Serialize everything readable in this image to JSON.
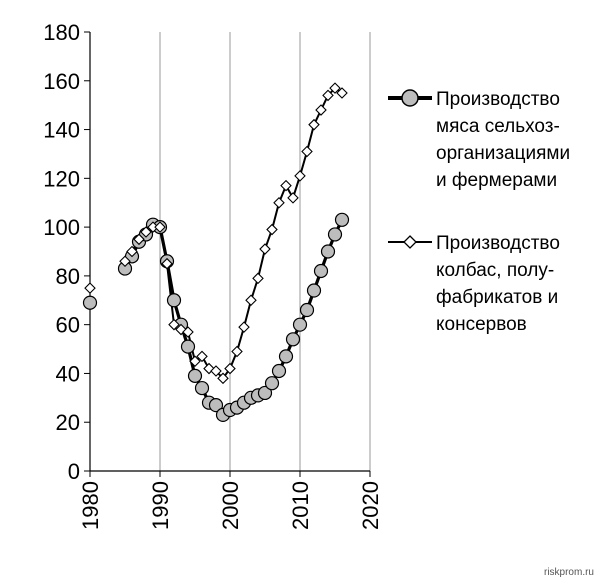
{
  "chart_data": {
    "type": "line",
    "xlim": [
      1980,
      2020
    ],
    "ylim": [
      0,
      180
    ],
    "x_ticks": [
      "1980",
      "1990",
      "2000",
      "2010",
      "2020"
    ],
    "y_ticks": [
      "0",
      "20",
      "40",
      "60",
      "80",
      "100",
      "120",
      "140",
      "160",
      "180"
    ],
    "grid": "vertical",
    "legend_position": "right",
    "series": [
      {
        "name": "Производство мяса сельхоз-организациями и фермерами",
        "legend_lines": [
          "Производство",
          "мяса сельхоз-",
          "организациями",
          "и фермерами"
        ],
        "marker": "circle",
        "marker_fill": "#bdbdbd",
        "line_width": "thick",
        "isolated": [
          {
            "x": 1980,
            "y": 69
          }
        ],
        "points": [
          {
            "x": 1985,
            "y": 83
          },
          {
            "x": 1986,
            "y": 88
          },
          {
            "x": 1987,
            "y": 94
          },
          {
            "x": 1988,
            "y": 97
          },
          {
            "x": 1989,
            "y": 101
          },
          {
            "x": 1990,
            "y": 100
          },
          {
            "x": 1991,
            "y": 86
          },
          {
            "x": 1992,
            "y": 70
          },
          {
            "x": 1993,
            "y": 60
          },
          {
            "x": 1994,
            "y": 51
          },
          {
            "x": 1995,
            "y": 39
          },
          {
            "x": 1996,
            "y": 34
          },
          {
            "x": 1997,
            "y": 28
          },
          {
            "x": 1998,
            "y": 27
          },
          {
            "x": 1999,
            "y": 23
          },
          {
            "x": 2000,
            "y": 25
          },
          {
            "x": 2001,
            "y": 26
          },
          {
            "x": 2002,
            "y": 28
          },
          {
            "x": 2003,
            "y": 30
          },
          {
            "x": 2004,
            "y": 31
          },
          {
            "x": 2005,
            "y": 32
          },
          {
            "x": 2006,
            "y": 36
          },
          {
            "x": 2007,
            "y": 41
          },
          {
            "x": 2008,
            "y": 47
          },
          {
            "x": 2009,
            "y": 54
          },
          {
            "x": 2010,
            "y": 60
          },
          {
            "x": 2011,
            "y": 66
          },
          {
            "x": 2012,
            "y": 74
          },
          {
            "x": 2013,
            "y": 82
          },
          {
            "x": 2014,
            "y": 90
          },
          {
            "x": 2015,
            "y": 97
          },
          {
            "x": 2016,
            "y": 103
          }
        ]
      },
      {
        "name": "Производство колбас, полуфабрикатов и консервов",
        "legend_lines": [
          "Производство",
          "колбас, полу-",
          "фабрикатов и",
          "консервов"
        ],
        "marker": "diamond",
        "marker_fill": "#ffffff",
        "line_width": "medium",
        "isolated": [
          {
            "x": 1980,
            "y": 75
          }
        ],
        "points": [
          {
            "x": 1985,
            "y": 86
          },
          {
            "x": 1986,
            "y": 90
          },
          {
            "x": 1987,
            "y": 95
          },
          {
            "x": 1988,
            "y": 98
          },
          {
            "x": 1989,
            "y": 100
          },
          {
            "x": 1990,
            "y": 100
          },
          {
            "x": 1991,
            "y": 85
          },
          {
            "x": 1992,
            "y": 60
          },
          {
            "x": 1993,
            "y": 58
          },
          {
            "x": 1994,
            "y": 57
          },
          {
            "x": 1995,
            "y": 45
          },
          {
            "x": 1996,
            "y": 47
          },
          {
            "x": 1997,
            "y": 42
          },
          {
            "x": 1998,
            "y": 41
          },
          {
            "x": 1999,
            "y": 38
          },
          {
            "x": 2000,
            "y": 42
          },
          {
            "x": 2001,
            "y": 49
          },
          {
            "x": 2002,
            "y": 59
          },
          {
            "x": 2003,
            "y": 70
          },
          {
            "x": 2004,
            "y": 79
          },
          {
            "x": 2005,
            "y": 91
          },
          {
            "x": 2006,
            "y": 99
          },
          {
            "x": 2007,
            "y": 110
          },
          {
            "x": 2008,
            "y": 117
          },
          {
            "x": 2009,
            "y": 112
          },
          {
            "x": 2010,
            "y": 121
          },
          {
            "x": 2011,
            "y": 131
          },
          {
            "x": 2012,
            "y": 142
          },
          {
            "x": 2013,
            "y": 148
          },
          {
            "x": 2014,
            "y": 154
          },
          {
            "x": 2015,
            "y": 157
          },
          {
            "x": 2016,
            "y": 155
          }
        ]
      }
    ]
  },
  "watermark": "riskprom.ru"
}
